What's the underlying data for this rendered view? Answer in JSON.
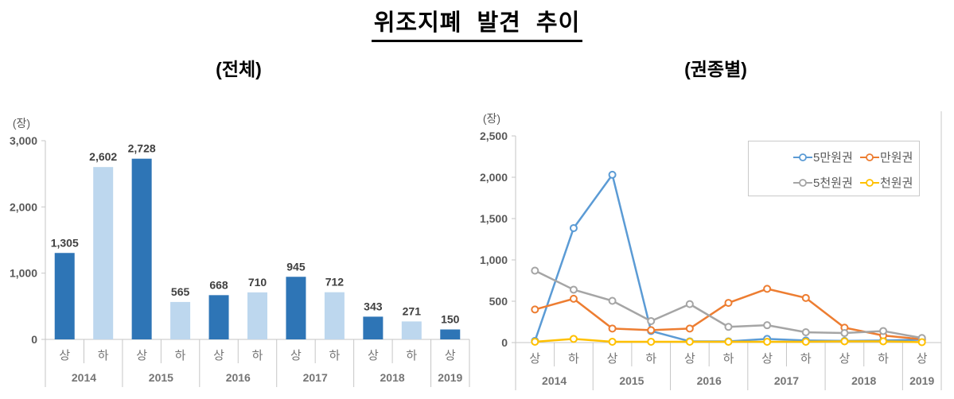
{
  "title": "위조지폐 발견 추이",
  "x_axis": {
    "half_labels": [
      "상",
      "하",
      "상",
      "하",
      "상",
      "하",
      "상",
      "하",
      "상",
      "하",
      "상"
    ],
    "year_groups": [
      {
        "label": "2014",
        "span": 2
      },
      {
        "label": "2015",
        "span": 2
      },
      {
        "label": "2016",
        "span": 2
      },
      {
        "label": "2017",
        "span": 2
      },
      {
        "label": "2018",
        "span": 2
      },
      {
        "label": "2019",
        "span": 1
      }
    ]
  },
  "chart_data": [
    {
      "type": "bar",
      "title": "(전체)",
      "unit_label": "(장)",
      "categories": [
        "2014 상",
        "2014 하",
        "2015 상",
        "2015 하",
        "2016 상",
        "2016 하",
        "2017 상",
        "2017 하",
        "2018 상",
        "2018 하",
        "2019 상"
      ],
      "values": [
        1305,
        2602,
        2728,
        565,
        668,
        710,
        945,
        712,
        343,
        271,
        150
      ],
      "value_labels": [
        "1,305",
        "2,602",
        "2,728",
        "565",
        "668",
        "710",
        "945",
        "712",
        "343",
        "271",
        "150"
      ],
      "ylim": [
        0,
        3000
      ],
      "yticks": [
        0,
        1000,
        2000,
        3000
      ],
      "ytick_labels": [
        "0",
        "1,000",
        "2,000",
        "3,000"
      ],
      "grid": false,
      "colors": {
        "first_half": "#2E75B6",
        "second_half": "#BDD7EE"
      }
    },
    {
      "type": "line",
      "title": "(권종별)",
      "unit_label": "(장)",
      "categories": [
        "2014 상",
        "2014 하",
        "2015 상",
        "2015 하",
        "2016 상",
        "2016 하",
        "2017 상",
        "2017 하",
        "2018 상",
        "2018 하",
        "2019 상"
      ],
      "series": [
        {
          "name": "5만원권",
          "color": "#5B9BD5",
          "values": [
            20,
            1385,
            2030,
            140,
            15,
            15,
            45,
            25,
            20,
            25,
            35
          ]
        },
        {
          "name": "만원권",
          "color": "#ED7D31",
          "values": [
            400,
            530,
            170,
            150,
            170,
            480,
            650,
            540,
            180,
            85,
            40
          ]
        },
        {
          "name": "5천원권",
          "color": "#A5A5A5",
          "values": [
            870,
            640,
            505,
            260,
            465,
            190,
            210,
            125,
            115,
            140,
            55
          ]
        },
        {
          "name": "천원권",
          "color": "#FFC000",
          "values": [
            10,
            45,
            10,
            10,
            10,
            10,
            10,
            10,
            15,
            15,
            5
          ]
        }
      ],
      "ylim": [
        0,
        2500
      ],
      "yticks": [
        0,
        500,
        1000,
        1500,
        2000,
        2500
      ],
      "ytick_labels": [
        "0",
        "500",
        "1,000",
        "1,500",
        "2,000",
        "2,500"
      ],
      "legend_position": "top-right",
      "grid": false
    }
  ]
}
